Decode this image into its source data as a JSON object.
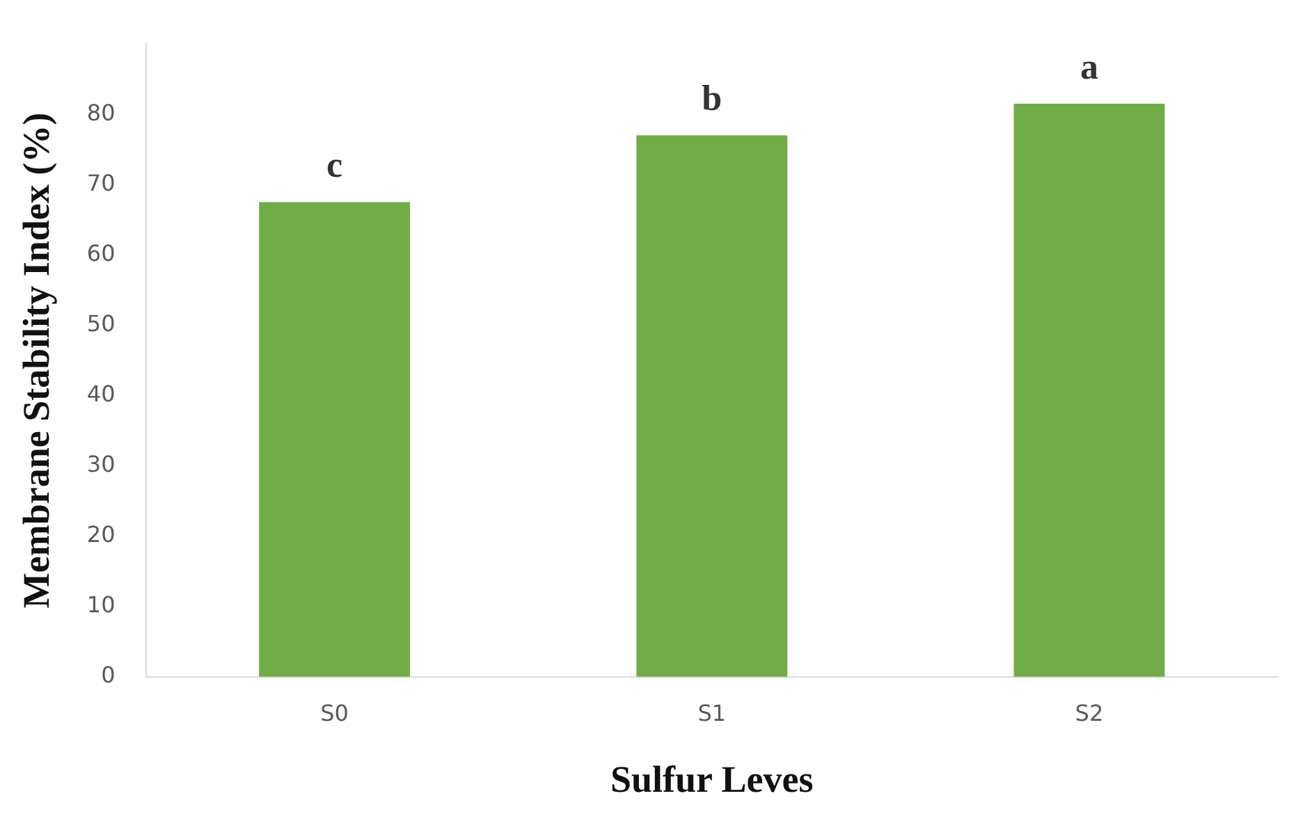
{
  "chart_data": {
    "type": "bar",
    "xlabel": "Sulfur Leves",
    "ylabel": "Membrane Stability Index (%)",
    "categories": [
      "S0",
      "S1",
      "S2"
    ],
    "values": [
      67.5,
      77,
      81.5
    ],
    "color": "#70ad47",
    "ylim": [
      0,
      90
    ],
    "yticks": [
      0,
      10,
      20,
      30,
      40,
      50,
      60,
      70,
      80
    ],
    "grid": false,
    "legend": false,
    "annotations": [
      "c",
      "b",
      "a"
    ]
  }
}
